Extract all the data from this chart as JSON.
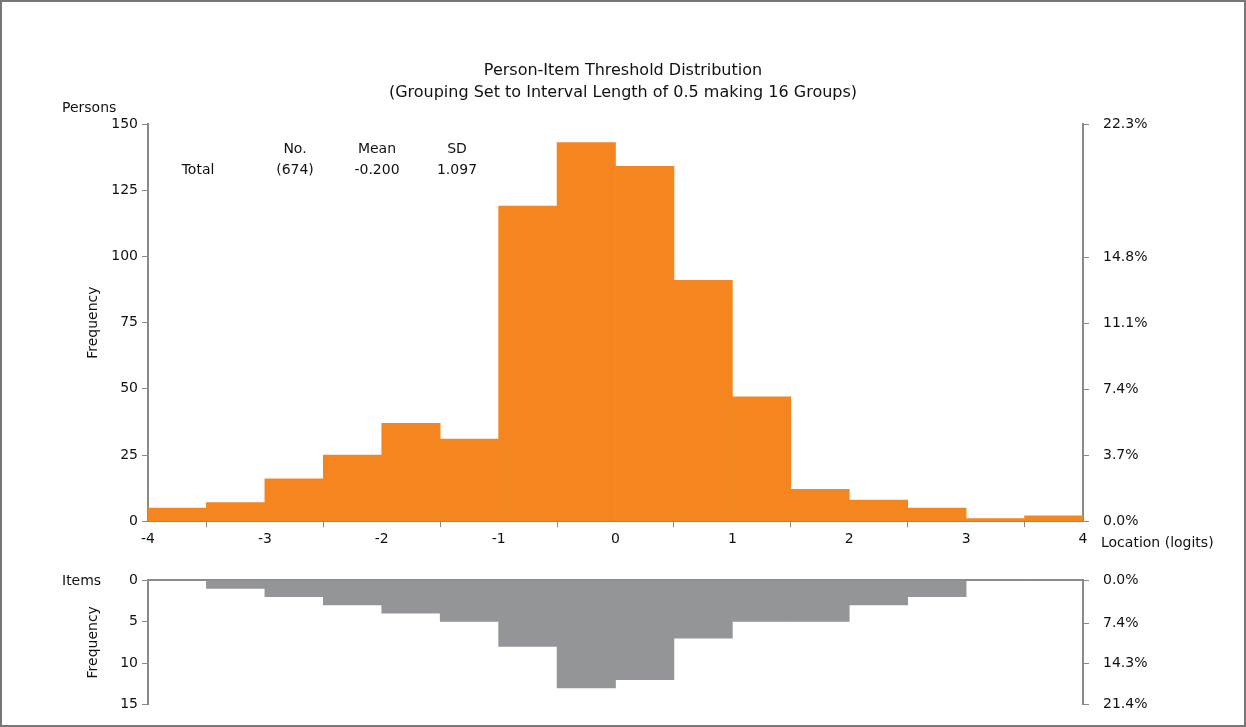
{
  "chart_data": [
    {
      "type": "histogram",
      "title": "Person-Item Threshold Distribution",
      "subtitle": "(Grouping Set to Interval Length of 0.5 making 16 Groups)",
      "xlabel": "Location (logits)",
      "ylabel": "Frequency",
      "bins": [
        -4,
        -3.5,
        -3,
        -2.5,
        -2,
        -1.5,
        -1,
        -0.5,
        0,
        0.5,
        1,
        1.5,
        2,
        2.5,
        3,
        3.5,
        4
      ],
      "values": [
        5,
        7,
        16,
        25,
        37,
        31,
        119,
        143,
        134,
        91,
        47,
        12,
        8,
        5,
        1,
        2
      ],
      "color": "#f5861f",
      "xlim": [
        -4,
        4
      ],
      "xticks": [
        -4,
        -3,
        -2,
        -1,
        0,
        1,
        2,
        3,
        4
      ],
      "ylim": [
        0,
        150
      ],
      "yticks": [
        0,
        25,
        50,
        75,
        100,
        125,
        150
      ],
      "y2lim": [
        0,
        22.3
      ],
      "y2ticks": [
        {
          "value": 0,
          "label": "0.0%"
        },
        {
          "value": 3.7,
          "label": "3.7%"
        },
        {
          "value": 7.4,
          "label": "7.4%"
        },
        {
          "value": 11.1,
          "label": "11.1%"
        },
        {
          "value": 14.8,
          "label": "14.8%"
        },
        {
          "value": 22.3,
          "label": "22.3%"
        }
      ],
      "annotations": [
        "Persons",
        "Total",
        "No.",
        "(674)",
        "Mean",
        "-0.200",
        "SD",
        "1.097"
      ],
      "grid": false,
      "legend": false
    },
    {
      "type": "histogram",
      "ylabel": "Frequency",
      "bins": [
        -4,
        -3.5,
        -3,
        -2.5,
        -2,
        -1.5,
        -1,
        -0.5,
        0,
        0.5,
        1,
        1.5,
        2,
        2.5,
        3,
        3.5,
        4
      ],
      "values": [
        0,
        1,
        2,
        3,
        4,
        5,
        8,
        13,
        12,
        7,
        5,
        5,
        3,
        2,
        0,
        0
      ],
      "color": "#939598",
      "xlim": [
        -4,
        4
      ],
      "ylim": [
        15,
        0
      ],
      "yticks": [
        0,
        5,
        10,
        15
      ],
      "y2lim": [
        21.4,
        0
      ],
      "y2ticks": [
        {
          "value": 0,
          "label": "0.0%"
        },
        {
          "value": 7.4,
          "label": "7.4%"
        },
        {
          "value": 14.3,
          "label": "14.3%"
        },
        {
          "value": 21.4,
          "label": "21.4%"
        }
      ],
      "annotations": [
        "Items"
      ],
      "tick_labels": "y",
      "grid": false,
      "legend": false
    }
  ]
}
